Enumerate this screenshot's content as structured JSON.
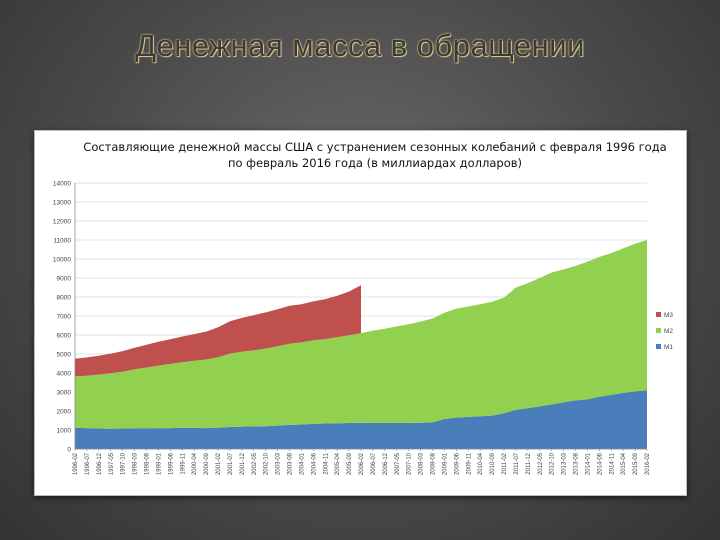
{
  "slide": {
    "title": "Денежная масса в обращении"
  },
  "chart_data": {
    "type": "area",
    "stacked": true,
    "title": "Составляющие денежной массы США с устранением сезонных колебаний с февраля 1996 года по февраль 2016 года (в миллиардах долларов)",
    "xlabel": "",
    "ylabel": "",
    "ylim": [
      0,
      14000
    ],
    "yticks": [
      0,
      1000,
      2000,
      3000,
      4000,
      5000,
      6000,
      7000,
      8000,
      9000,
      10000,
      11000,
      12000,
      13000,
      14000
    ],
    "x": [
      "1996-02",
      "1996-07",
      "1996-12",
      "1997-05",
      "1997-10",
      "1998-03",
      "1998-08",
      "1999-01",
      "1999-06",
      "1999-11",
      "2000-04",
      "2000-09",
      "2001-02",
      "2001-07",
      "2001-12",
      "2002-05",
      "2002-10",
      "2003-03",
      "2003-08",
      "2004-01",
      "2004-06",
      "2004-11",
      "2005-04",
      "2005-09",
      "2006-02",
      "2006-07",
      "2006-12",
      "2007-05",
      "2007-10",
      "2008-03",
      "2008-08",
      "2009-01",
      "2009-06",
      "2009-11",
      "2010-04",
      "2010-09",
      "2011-02",
      "2011-07",
      "2011-12",
      "2012-05",
      "2012-10",
      "2013-03",
      "2013-08",
      "2014-01",
      "2014-06",
      "2014-11",
      "2015-04",
      "2015-09",
      "2016-02"
    ],
    "series": [
      {
        "name": "M1",
        "color": "#4a7ebb",
        "values": [
          1120,
          1100,
          1080,
          1070,
          1080,
          1090,
          1090,
          1100,
          1100,
          1120,
          1110,
          1100,
          1120,
          1160,
          1180,
          1190,
          1200,
          1230,
          1270,
          1290,
          1320,
          1340,
          1360,
          1370,
          1380,
          1370,
          1370,
          1370,
          1370,
          1380,
          1400,
          1580,
          1650,
          1690,
          1720,
          1760,
          1880,
          2070,
          2150,
          2240,
          2350,
          2450,
          2560,
          2610,
          2750,
          2850,
          2950,
          3030,
          3100
        ]
      },
      {
        "name": "M2",
        "color": "#92d050",
        "values": [
          2700,
          2760,
          2840,
          2920,
          2990,
          3110,
          3200,
          3290,
          3380,
          3450,
          3540,
          3610,
          3710,
          3860,
          3940,
          4000,
          4090,
          4180,
          4270,
          4320,
          4400,
          4450,
          4530,
          4620,
          4720,
          4850,
          4960,
          5080,
          5200,
          5330,
          5470,
          5590,
          5740,
          5810,
          5900,
          5990,
          6090,
          6430,
          6580,
          6760,
          6940,
          7000,
          7070,
          7240,
          7360,
          7460,
          7610,
          7770,
          7900
        ]
      },
      {
        "name": "M3",
        "color": "#c0504d",
        "values": [
          930,
          960,
          990,
          1030,
          1080,
          1130,
          1200,
          1250,
          1300,
          1350,
          1400,
          1470,
          1580,
          1700,
          1780,
          1850,
          1900,
          1950,
          2000,
          2010,
          2050,
          2100,
          2180,
          2300,
          2520,
          null,
          null,
          null,
          null,
          null,
          null,
          null,
          null,
          null,
          null,
          null,
          null,
          null,
          null,
          null,
          null,
          null,
          null,
          null,
          null,
          null,
          null,
          null,
          null
        ]
      }
    ],
    "legend_position": "right",
    "grid": true
  }
}
